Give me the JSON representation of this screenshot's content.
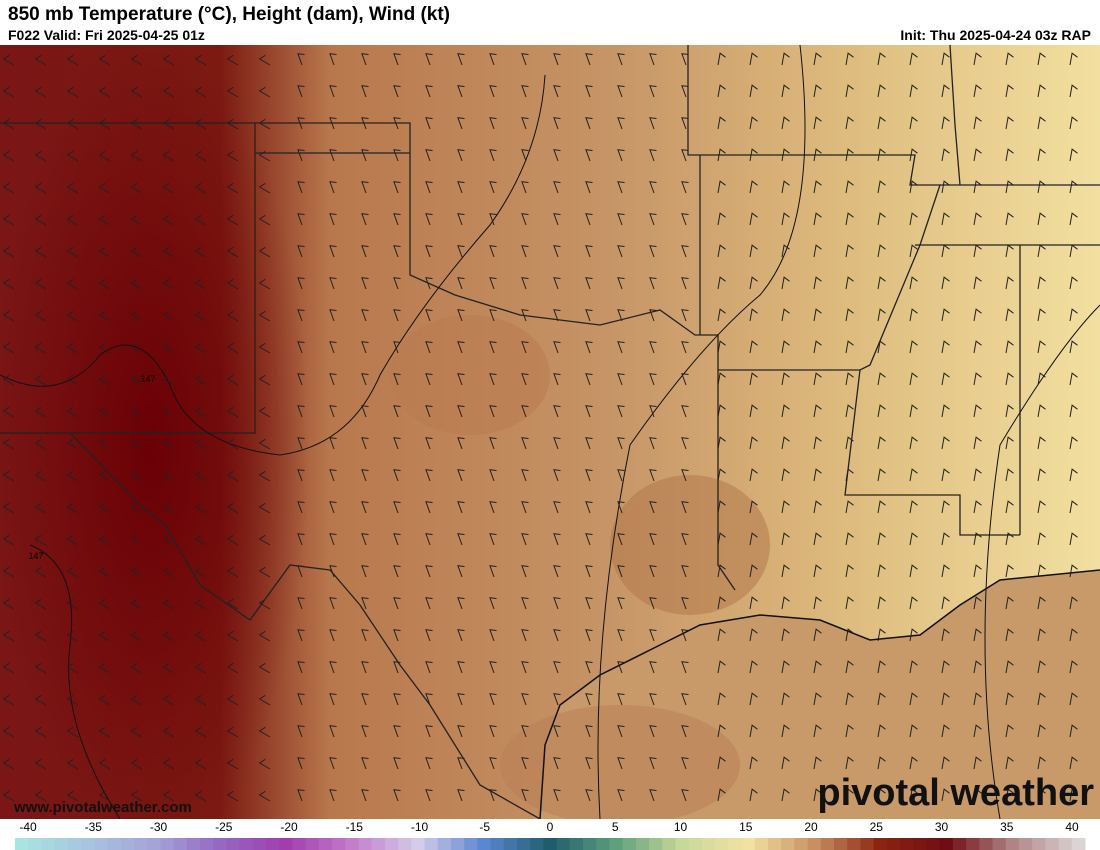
{
  "header": {
    "title": "850 mb Temperature (°C), Height (dam), Wind (kt)",
    "valid": "F022 Valid: Fri 2025-04-25 01z",
    "init": "Init: Thu 2025-04-24 03z RAP"
  },
  "map": {
    "contour_labels": [
      "147",
      "147"
    ],
    "watermark": "www.pivotalweather.com",
    "logo": "pivotal weather"
  },
  "colorbar": {
    "ticks": [
      -40,
      -35,
      -30,
      -25,
      -20,
      -15,
      -10,
      -5,
      0,
      5,
      10,
      15,
      20,
      25,
      30,
      35,
      40
    ],
    "colors": [
      "#a8e4e0",
      "#a8c4e0",
      "#a4a4d8",
      "#9468c4",
      "#a23cb0",
      "#c47ccc",
      "#d4cce8",
      "#5a86d2",
      "#1e5e6c",
      "#5ea07e",
      "#c8d898",
      "#f2e2a2",
      "#c89060",
      "#8c2412",
      "#700c14",
      "#b08484",
      "#dcd4d4"
    ]
  }
}
